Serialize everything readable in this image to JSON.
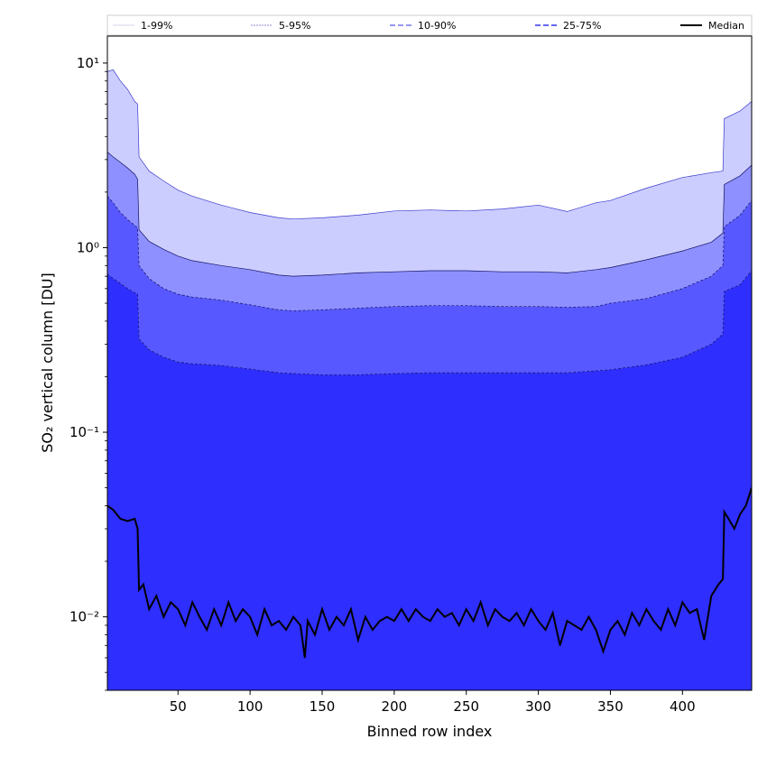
{
  "chart_data": {
    "type": "area",
    "title": "",
    "xlabel": "Binned row index",
    "ylabel": "SO₂ vertical column [DU]",
    "xlim": [
      1,
      448
    ],
    "ylim": [
      0.004,
      14
    ],
    "yscale": "log",
    "grid": false,
    "legend_position": "top",
    "x_ticks": [
      50,
      100,
      150,
      200,
      250,
      300,
      350,
      400
    ],
    "x_tick_labels": [
      "50",
      "100",
      "150",
      "200",
      "250",
      "300",
      "350",
      "400"
    ],
    "y_ticks": [
      0.01,
      0.1,
      1,
      10
    ],
    "y_tick_labels": [
      "10⁻²",
      "10⁻¹",
      "10⁰",
      "10¹"
    ],
    "x": [
      1,
      5,
      10,
      15,
      20,
      22,
      23,
      30,
      40,
      50,
      60,
      80,
      100,
      120,
      130,
      150,
      175,
      200,
      225,
      250,
      275,
      300,
      320,
      340,
      350,
      375,
      400,
      420,
      428,
      429,
      440,
      448
    ],
    "bands": [
      {
        "name": "1-99%",
        "color": "#cccdff",
        "upper": [
          9.0,
          9.2,
          8.0,
          7.2,
          6.2,
          6.0,
          3.1,
          2.6,
          2.3,
          2.05,
          1.9,
          1.7,
          1.55,
          1.45,
          1.43,
          1.45,
          1.5,
          1.58,
          1.6,
          1.58,
          1.62,
          1.7,
          1.57,
          1.75,
          1.8,
          2.1,
          2.4,
          2.55,
          2.6,
          5.0,
          5.5,
          6.2
        ],
        "lower": [
          3.3,
          3.1,
          2.9,
          2.7,
          2.5,
          2.35,
          1.25,
          1.08,
          0.98,
          0.9,
          0.85,
          0.8,
          0.76,
          0.71,
          0.7,
          0.71,
          0.73,
          0.74,
          0.75,
          0.75,
          0.74,
          0.74,
          0.73,
          0.76,
          0.78,
          0.86,
          0.96,
          1.07,
          1.2,
          2.2,
          2.45,
          2.8
        ]
      },
      {
        "name": "5-95%",
        "color": "#8e90ff",
        "upper": [
          3.3,
          3.1,
          2.9,
          2.7,
          2.5,
          2.35,
          1.25,
          1.08,
          0.98,
          0.9,
          0.85,
          0.8,
          0.76,
          0.71,
          0.7,
          0.71,
          0.73,
          0.74,
          0.75,
          0.75,
          0.74,
          0.74,
          0.73,
          0.76,
          0.78,
          0.86,
          0.96,
          1.07,
          1.2,
          2.2,
          2.45,
          2.8
        ],
        "lower": [
          1.9,
          1.75,
          1.55,
          1.42,
          1.32,
          1.28,
          0.8,
          0.68,
          0.6,
          0.56,
          0.54,
          0.52,
          0.49,
          0.46,
          0.455,
          0.46,
          0.47,
          0.48,
          0.485,
          0.485,
          0.48,
          0.48,
          0.475,
          0.48,
          0.5,
          0.53,
          0.6,
          0.7,
          0.8,
          1.3,
          1.5,
          1.8
        ]
      },
      {
        "name": "10-90%",
        "color": "#5758ff",
        "upper": [
          1.9,
          1.75,
          1.55,
          1.42,
          1.32,
          1.28,
          0.8,
          0.68,
          0.6,
          0.56,
          0.54,
          0.52,
          0.49,
          0.46,
          0.455,
          0.46,
          0.47,
          0.48,
          0.485,
          0.485,
          0.48,
          0.48,
          0.475,
          0.48,
          0.5,
          0.53,
          0.6,
          0.7,
          0.8,
          1.3,
          1.5,
          1.8
        ],
        "lower": [
          0.72,
          0.68,
          0.64,
          0.6,
          0.57,
          0.56,
          0.32,
          0.28,
          0.255,
          0.24,
          0.235,
          0.23,
          0.22,
          0.21,
          0.208,
          0.205,
          0.205,
          0.208,
          0.21,
          0.21,
          0.21,
          0.21,
          0.21,
          0.215,
          0.218,
          0.232,
          0.255,
          0.3,
          0.34,
          0.58,
          0.63,
          0.75
        ]
      },
      {
        "name": "25-75%",
        "color": "#2e2eff",
        "upper": [
          0.72,
          0.68,
          0.64,
          0.6,
          0.57,
          0.56,
          0.32,
          0.28,
          0.255,
          0.24,
          0.235,
          0.23,
          0.22,
          0.21,
          0.208,
          0.205,
          0.205,
          0.208,
          0.21,
          0.21,
          0.21,
          0.21,
          0.21,
          0.215,
          0.218,
          0.232,
          0.255,
          0.3,
          0.34,
          0.58,
          0.63,
          0.75
        ],
        "lower": [
          0.004,
          0.004,
          0.004,
          0.004,
          0.004,
          0.004,
          0.004,
          0.004,
          0.004,
          0.004,
          0.004,
          0.004,
          0.004,
          0.004,
          0.004,
          0.004,
          0.004,
          0.004,
          0.004,
          0.004,
          0.004,
          0.004,
          0.004,
          0.004,
          0.004,
          0.004,
          0.004,
          0.004,
          0.004,
          0.004,
          0.004,
          0.004
        ]
      }
    ],
    "median": {
      "name": "Median",
      "color": "#000000",
      "x": [
        1,
        5,
        10,
        15,
        20,
        22,
        23,
        26,
        30,
        35,
        40,
        45,
        50,
        55,
        60,
        65,
        70,
        75,
        80,
        85,
        90,
        95,
        100,
        105,
        110,
        115,
        120,
        125,
        130,
        135,
        138,
        140,
        145,
        150,
        155,
        160,
        165,
        170,
        175,
        180,
        185,
        190,
        195,
        200,
        205,
        210,
        215,
        220,
        225,
        230,
        235,
        240,
        245,
        250,
        255,
        260,
        265,
        270,
        275,
        280,
        285,
        290,
        295,
        300,
        305,
        310,
        315,
        320,
        325,
        330,
        335,
        340,
        345,
        350,
        355,
        360,
        365,
        370,
        375,
        380,
        385,
        390,
        395,
        400,
        405,
        410,
        415,
        420,
        425,
        428,
        429,
        432,
        436,
        440,
        444,
        448
      ],
      "values": [
        0.04,
        0.038,
        0.034,
        0.033,
        0.034,
        0.03,
        0.014,
        0.015,
        0.011,
        0.013,
        0.01,
        0.012,
        0.011,
        0.009,
        0.012,
        0.01,
        0.0085,
        0.011,
        0.009,
        0.012,
        0.0095,
        0.011,
        0.01,
        0.008,
        0.011,
        0.009,
        0.0095,
        0.0085,
        0.01,
        0.009,
        0.006,
        0.0095,
        0.008,
        0.011,
        0.0085,
        0.01,
        0.009,
        0.011,
        0.0075,
        0.01,
        0.0085,
        0.0095,
        0.01,
        0.0095,
        0.011,
        0.0095,
        0.011,
        0.01,
        0.0095,
        0.011,
        0.01,
        0.0105,
        0.009,
        0.011,
        0.0095,
        0.012,
        0.009,
        0.011,
        0.01,
        0.0095,
        0.0105,
        0.009,
        0.011,
        0.0095,
        0.0085,
        0.0105,
        0.007,
        0.0095,
        0.009,
        0.0085,
        0.01,
        0.0085,
        0.0065,
        0.0085,
        0.0095,
        0.008,
        0.0105,
        0.009,
        0.011,
        0.0095,
        0.0085,
        0.011,
        0.009,
        0.012,
        0.0105,
        0.011,
        0.0075,
        0.013,
        0.015,
        0.016,
        0.037,
        0.034,
        0.03,
        0.036,
        0.04,
        0.05
      ]
    }
  }
}
